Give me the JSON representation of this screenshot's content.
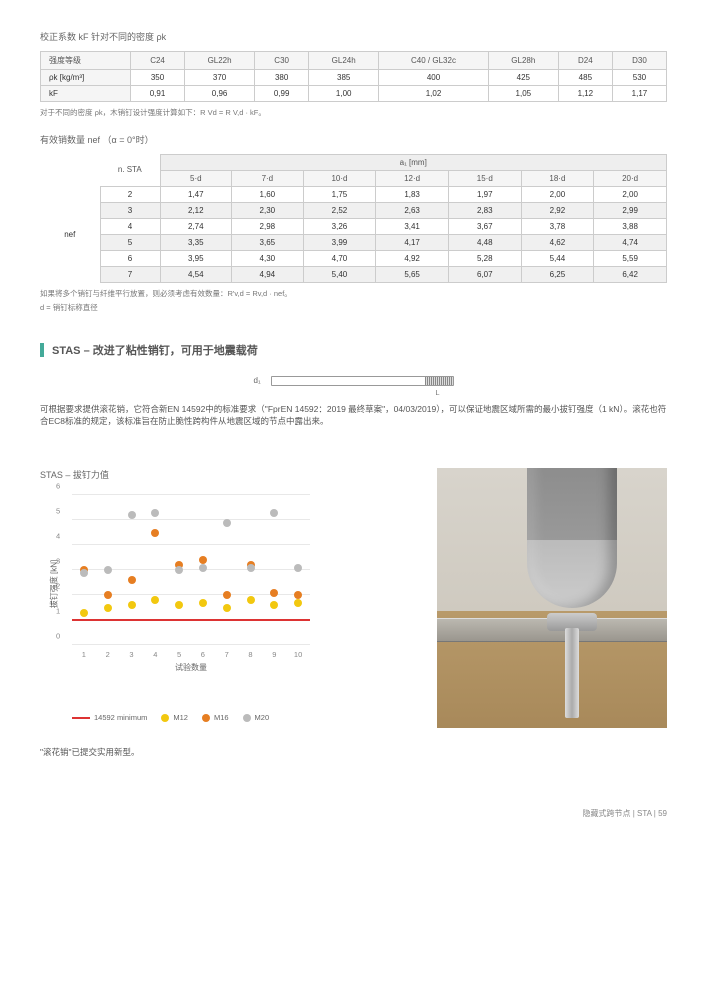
{
  "table1": {
    "caption": "校正系数 kF 针对不同的密度 ρk",
    "header": [
      "强度等级",
      "C24",
      "GL22h",
      "C30",
      "GL24h",
      "C40 / GL32c",
      "GL28h",
      "D24",
      "D30"
    ],
    "rows": [
      {
        "label": "ρk [kg/m³]",
        "cells": [
          "350",
          "370",
          "380",
          "385",
          "400",
          "425",
          "485",
          "530"
        ]
      },
      {
        "label": "kF",
        "cells": [
          "0,91",
          "0,96",
          "0,99",
          "1,00",
          "1,02",
          "1,05",
          "1,12",
          "1,17"
        ]
      }
    ],
    "note": "对于不同的密度 ρk，木销钉设计强度计算如下：R Vd = R V,d · kF。"
  },
  "table2": {
    "caption": "有效销数量 nef （α = 0°时）",
    "group_header": "a₁ [mm]",
    "col_labels": [
      "n. STA",
      "5·d",
      "7·d",
      "10·d",
      "12·d",
      "15·d",
      "18·d",
      "20·d"
    ],
    "left_label": "nef",
    "rows": [
      {
        "n": "2",
        "v": [
          "1,47",
          "1,60",
          "1,75",
          "1,83",
          "1,97",
          "2,00",
          "2,00"
        ],
        "shaded": false
      },
      {
        "n": "3",
        "v": [
          "2,12",
          "2,30",
          "2,52",
          "2,63",
          "2,83",
          "2,92",
          "2,99"
        ],
        "shaded": true
      },
      {
        "n": "4",
        "v": [
          "2,74",
          "2,98",
          "3,26",
          "3,41",
          "3,67",
          "3,78",
          "3,88"
        ],
        "shaded": false
      },
      {
        "n": "5",
        "v": [
          "3,35",
          "3,65",
          "3,99",
          "4,17",
          "4,48",
          "4,62",
          "4,74"
        ],
        "shaded": true
      },
      {
        "n": "6",
        "v": [
          "3,95",
          "4,30",
          "4,70",
          "4,92",
          "5,28",
          "5,44",
          "5,59"
        ],
        "shaded": false
      },
      {
        "n": "7",
        "v": [
          "4,54",
          "4,94",
          "5,40",
          "5,65",
          "6,07",
          "6,25",
          "6,42"
        ],
        "shaded": true
      }
    ],
    "note1": "如果将多个销钉与纤维平行放置，则必须考虑有效数量：R'v,d = Rv,d · nef。",
    "note2": "d = 销钉标称直径"
  },
  "section": {
    "title": "STAS – 改进了粘性销钉，可用于地震载荷",
    "d1_label": "d₁",
    "L_label": "L",
    "body": "可根据要求提供滚花销，它符合新EN 14592中的标准要求（\"FprEN 14592：2019 最终草案\"，04/03/2019），可以保证地震区域所需的最小拔钉强度（1 kN）。滚花也符合EC8标准的规定，该标准旨在防止脆性跨构件从地震区域的节点中露出来。"
  },
  "chart": {
    "title": "STAS – 拔钉力值",
    "y_title": "拔钉强度\n[kN]",
    "x_title": "试验数量",
    "y_max": 6,
    "y_step": 1,
    "x_ticks": [
      "1",
      "2",
      "3",
      "4",
      "5",
      "6",
      "7",
      "8",
      "9",
      "10"
    ],
    "series": [
      {
        "color": "#f2c80f",
        "name": "M12",
        "points": [
          [
            1,
            1.3
          ],
          [
            2,
            1.5
          ],
          [
            3,
            1.6
          ],
          [
            4,
            1.8
          ],
          [
            5,
            1.6
          ],
          [
            6,
            1.7
          ],
          [
            7,
            1.5
          ],
          [
            8,
            1.8
          ],
          [
            9,
            1.6
          ],
          [
            10,
            1.7
          ]
        ]
      },
      {
        "color": "#e67e22",
        "name": "M16",
        "points": [
          [
            1,
            3.0
          ],
          [
            2,
            2.0
          ],
          [
            3,
            2.6
          ],
          [
            4,
            4.5
          ],
          [
            5,
            3.2
          ],
          [
            6,
            3.4
          ],
          [
            7,
            2.0
          ],
          [
            8,
            3.2
          ],
          [
            9,
            2.1
          ],
          [
            10,
            2.0
          ]
        ]
      },
      {
        "color": "#bbb",
        "name": "M20",
        "points": [
          [
            1,
            2.9
          ],
          [
            2,
            3.0
          ],
          [
            3,
            5.2
          ],
          [
            4,
            5.3
          ],
          [
            5,
            3.0
          ],
          [
            6,
            3.1
          ],
          [
            7,
            4.9
          ],
          [
            8,
            3.1
          ],
          [
            9,
            5.3
          ],
          [
            10,
            3.1
          ]
        ]
      }
    ],
    "min_line": {
      "value": 1.0,
      "label": "14592 minimum",
      "color": "#d33"
    }
  },
  "legend": {
    "items": [
      {
        "type": "line",
        "label": "14592 minimum",
        "color": "#d33"
      },
      {
        "type": "dot",
        "label": "M12",
        "color": "#f2c80f"
      },
      {
        "type": "dot",
        "label": "M16",
        "color": "#e67e22"
      },
      {
        "type": "dot",
        "label": "M20",
        "color": "#bbb"
      }
    ]
  },
  "caption": "\"滚花销\"已提交实用新型。",
  "footer": "隐藏式跨节点  |  STA  |  59"
}
